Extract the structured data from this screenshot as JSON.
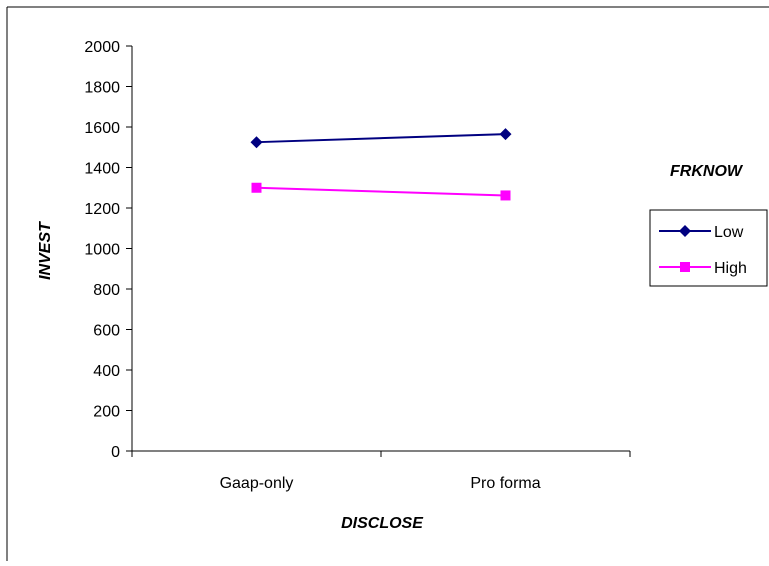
{
  "chart_data": {
    "type": "line",
    "title": "",
    "xlabel": "DISCLOSE",
    "ylabel": "INVEST",
    "categories": [
      "Gaap-only",
      "Pro forma"
    ],
    "ylim": [
      0,
      2000
    ],
    "yticks": [
      0,
      200,
      400,
      600,
      800,
      1000,
      1200,
      1400,
      1600,
      1800,
      2000
    ],
    "legend_title": "FRKNOW",
    "legend_position": "right",
    "grid": false,
    "series": [
      {
        "name": "Low",
        "values": [
          1525,
          1565
        ],
        "color": "#000080",
        "marker": "diamond"
      },
      {
        "name": "High",
        "values": [
          1300,
          1262
        ],
        "color": "#ff00ff",
        "marker": "square"
      }
    ]
  }
}
